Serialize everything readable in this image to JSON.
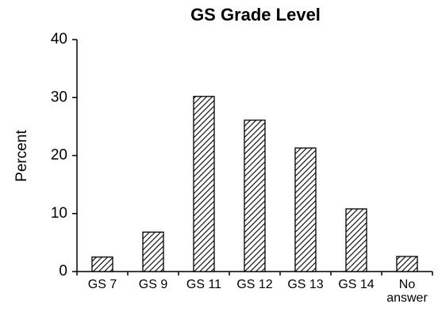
{
  "chart_data": {
    "type": "bar",
    "title": "GS Grade Level",
    "y_label": "Percent",
    "categories": [
      "GS 7",
      "GS 9",
      "GS 11",
      "GS 12",
      "GS 13",
      "GS 14",
      "No answer"
    ],
    "values": [
      2.5,
      6.8,
      30.2,
      26.1,
      21.3,
      10.8,
      2.6
    ],
    "color": "#000000",
    "ylim": [
      0,
      40
    ],
    "yticks": [
      0,
      10,
      20,
      30,
      40
    ],
    "grid": false
  }
}
